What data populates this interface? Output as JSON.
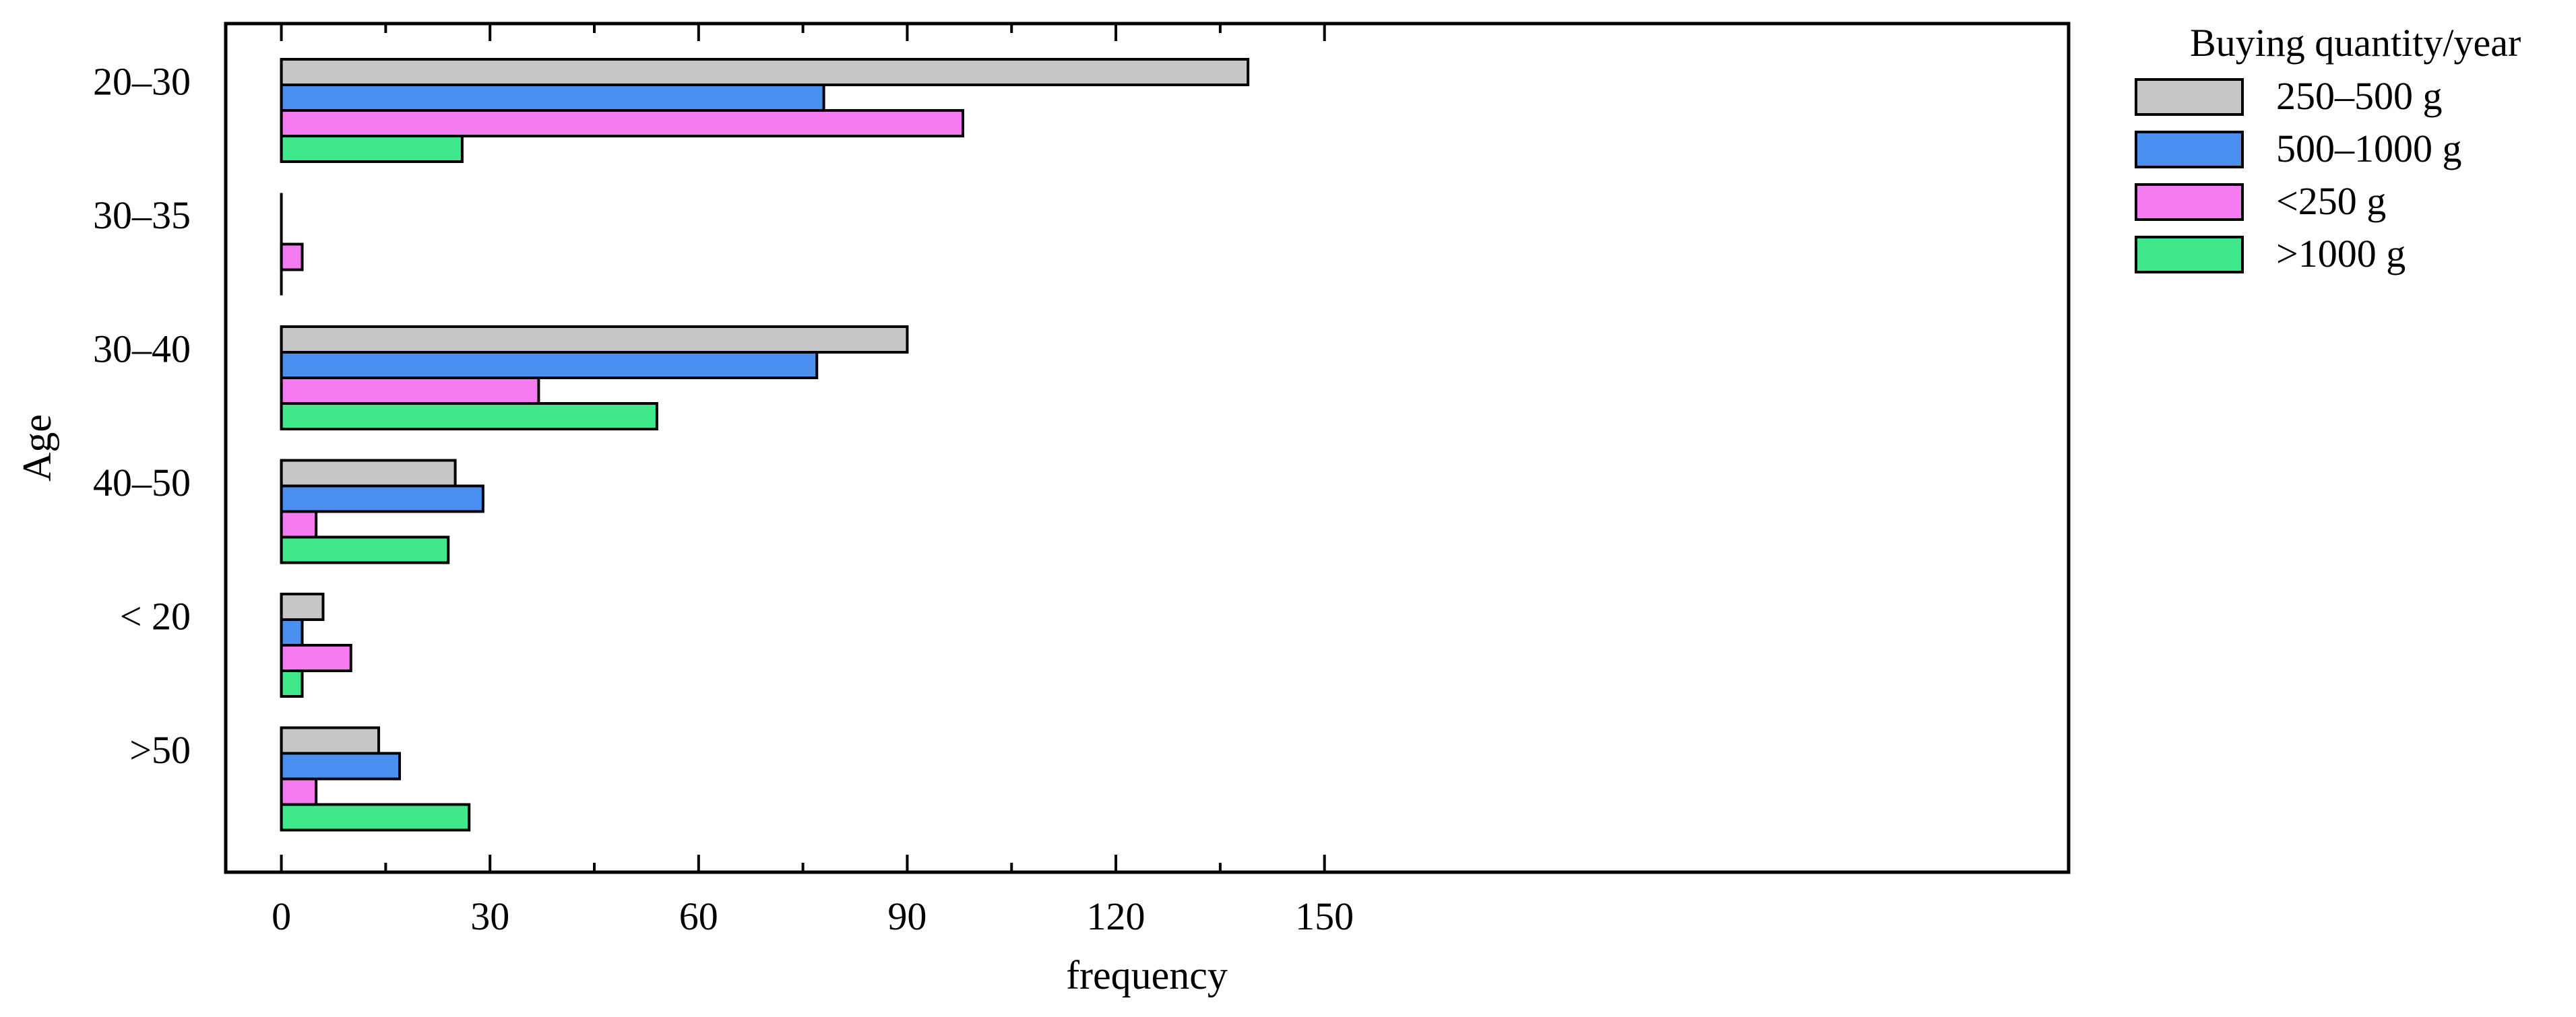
{
  "chart_data": {
    "type": "bar",
    "orientation": "horizontal",
    "title": "",
    "xlabel": "frequency",
    "ylabel": "Age",
    "xlim": [
      -8,
      257
    ],
    "xticks": [
      "0",
      "30",
      "60",
      "90",
      "120",
      "150"
    ],
    "xtick_values": [
      0,
      30,
      60,
      90,
      120,
      150
    ],
    "categories": [
      "20–30",
      "30–35",
      "30–40",
      "40–50",
      "< 20",
      ">50"
    ],
    "legend": {
      "title": "Buying quantity/year",
      "placement": "outside-right"
    },
    "grid": false,
    "series": [
      {
        "name": "250–500 g",
        "color": "#c6c6c6",
        "values": [
          139,
          0,
          90,
          25,
          6,
          14
        ]
      },
      {
        "name": "500–1000 g",
        "color": "#4a90f0",
        "values": [
          78,
          0,
          77,
          29,
          3,
          17
        ]
      },
      {
        "name": "<250 g",
        "color": "#f57cf0",
        "values": [
          98,
          3,
          37,
          5,
          10,
          5
        ]
      },
      {
        "name": ">1000 g",
        "color": "#3fe88a",
        "values": [
          26,
          0,
          54,
          24,
          3,
          27
        ]
      }
    ]
  }
}
